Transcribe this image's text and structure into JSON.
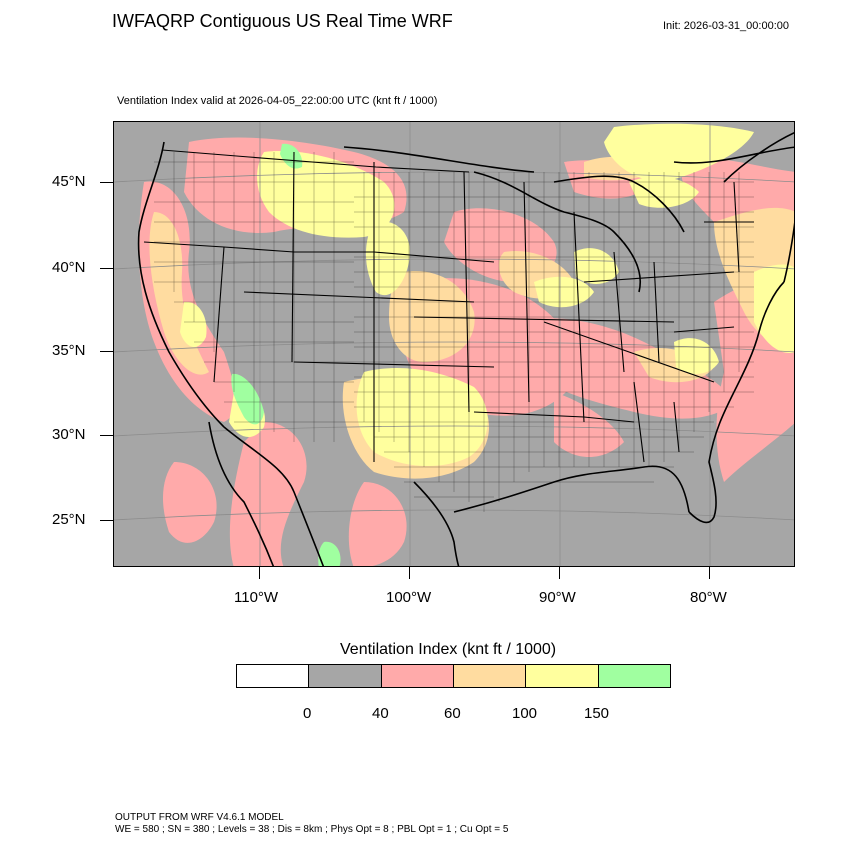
{
  "title": "IWFAQRP Contiguous US Real Time WRF",
  "init": "Init: 2026-03-31_00:00:00",
  "subtitle": "Ventilation Index valid at 2026-04-05_22:00:00 UTC   (knt ft / 1000)",
  "map": {
    "lat_labels": [
      "45°N",
      "40°N",
      "35°N",
      "30°N",
      "25°N"
    ],
    "lon_labels": [
      "110°W",
      "100°W",
      "90°W",
      "80°W"
    ],
    "colors": {
      "gray": "#a6a6a6",
      "pink": "#ffaaaa",
      "orange": "#ffdca0",
      "yellow": "#ffff9e",
      "green": "#a0ffa0",
      "white": "#ffffff",
      "lines": "#000000"
    }
  },
  "colorbar": {
    "title": "Ventilation Index  (knt ft / 1000)",
    "colors": [
      "#ffffff",
      "#a6a6a6",
      "#ffaaaa",
      "#ffdca0",
      "#ffff9e",
      "#a0ffa0"
    ],
    "ticks": [
      "0",
      "40",
      "60",
      "100",
      "150"
    ]
  },
  "footer": {
    "line1": "OUTPUT FROM WRF V4.6.1 MODEL",
    "line2": "WE = 580 ; SN = 380 ; Levels = 38 ; Dis = 8km ; Phys Opt = 8 ; PBL Opt = 1 ; Cu Opt = 5"
  }
}
